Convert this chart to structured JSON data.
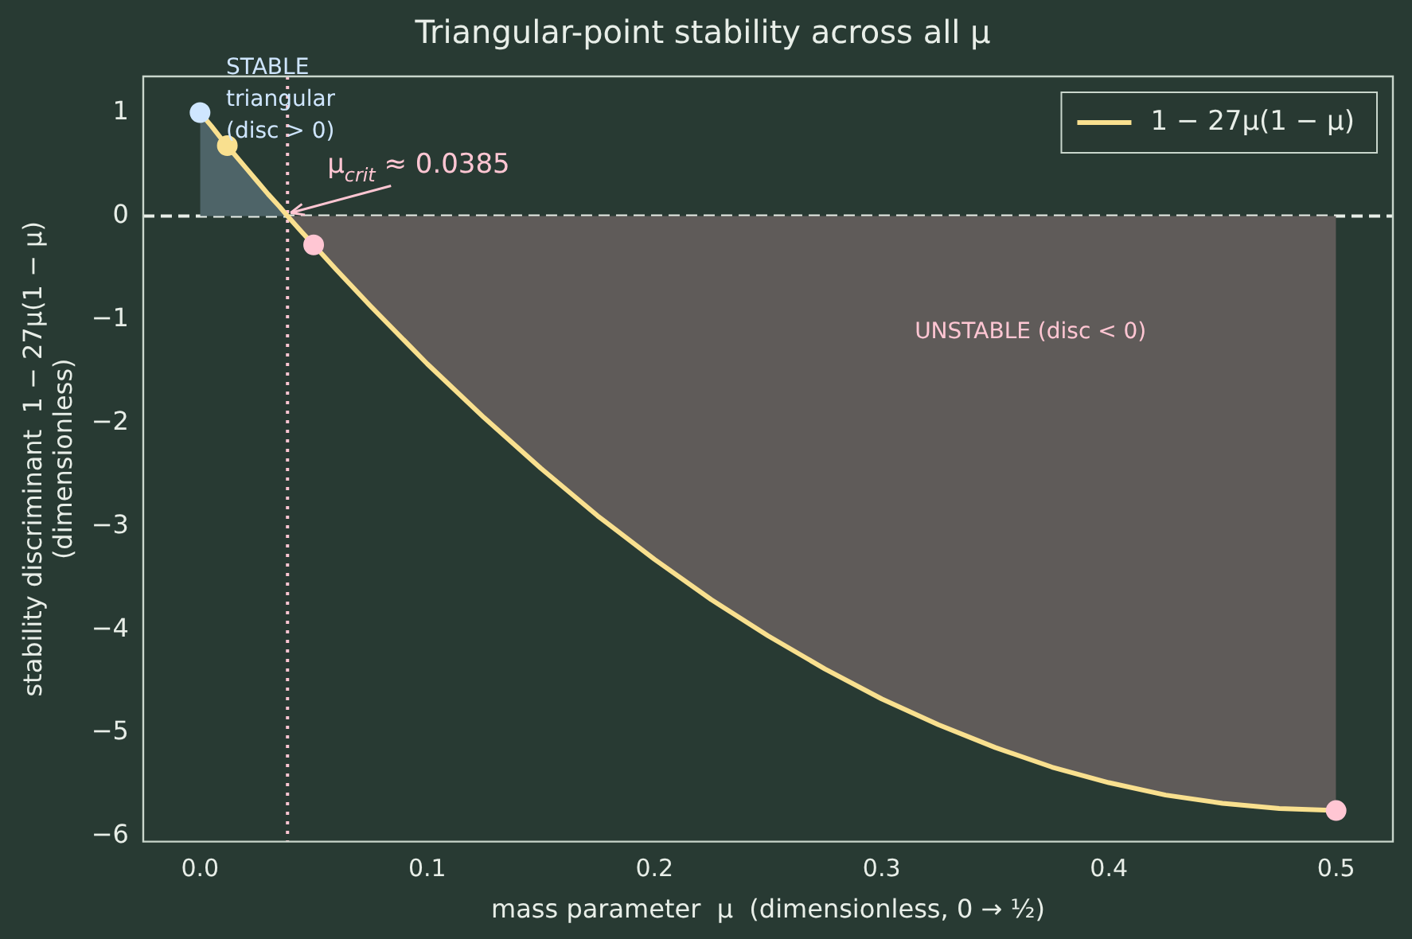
{
  "chart_data": {
    "type": "line",
    "title": "Triangular-point stability across all μ",
    "xlabel": "mass parameter  μ  (dimensionless, 0 → ½)",
    "ylabel": "stability discriminant  1 − 27μ(1 − μ)\n(dimensionless)",
    "series": [
      {
        "type": "area",
        "color": "#4e6468",
        "x": [
          0,
          0.005,
          0.01,
          0.015,
          0.02,
          0.025,
          0.03,
          0.035,
          0.0385
        ],
        "values": [
          1,
          0.87,
          0.73,
          0.6,
          0.47,
          0.34,
          0.21,
          0.09,
          0
        ]
      },
      {
        "type": "area",
        "color": "#5f5b59",
        "x": [
          0.0385,
          0.045,
          0.05,
          0.06,
          0.075,
          0.1,
          0.125,
          0.15,
          0.175,
          0.2,
          0.225,
          0.25,
          0.275,
          0.3,
          0.325,
          0.35,
          0.375,
          0.4,
          0.425,
          0.45,
          0.475,
          0.5
        ],
        "values": [
          0,
          -0.16,
          -0.28,
          -0.52,
          -0.87,
          -1.43,
          -1.95,
          -2.44,
          -2.9,
          -3.32,
          -3.71,
          -4.06,
          -4.38,
          -4.67,
          -4.92,
          -5.14,
          -5.33,
          -5.48,
          -5.6,
          -5.68,
          -5.73,
          -5.75
        ]
      },
      {
        "name": "1 − 27μ(1 − μ)",
        "color": "#f9e08f",
        "marker": "none",
        "x": [
          0,
          0.005,
          0.01,
          0.015,
          0.02,
          0.025,
          0.03,
          0.035,
          0.0385,
          0.045,
          0.05,
          0.06,
          0.075,
          0.1,
          0.125,
          0.15,
          0.175,
          0.2,
          0.225,
          0.25,
          0.275,
          0.3,
          0.325,
          0.35,
          0.375,
          0.4,
          0.425,
          0.45,
          0.475,
          0.5
        ],
        "values": [
          1,
          0.87,
          0.73,
          0.6,
          0.47,
          0.34,
          0.21,
          0.09,
          0,
          -0.16,
          -0.28,
          -0.52,
          -0.87,
          -1.43,
          -1.95,
          -2.44,
          -2.9,
          -3.32,
          -3.71,
          -4.06,
          -4.38,
          -4.67,
          -4.92,
          -5.14,
          -5.33,
          -5.48,
          -5.6,
          -5.68,
          -5.73,
          -5.75
        ]
      },
      {
        "type": "scatter",
        "color": "#cfe6ff",
        "marker": "circle",
        "x": [
          0
        ],
        "values": [
          1
        ]
      },
      {
        "type": "scatter",
        "color": "#f9e08f",
        "marker": "circle",
        "x": [
          0.012
        ],
        "values": [
          0.68
        ]
      },
      {
        "type": "scatter",
        "color": "#ffc6d3",
        "marker": "circle",
        "x": [
          0.05,
          0.5
        ],
        "values": [
          -0.28,
          -5.75
        ]
      }
    ],
    "xlim": [
      -0.025,
      0.525
    ],
    "xticks": [
      {
        "value": 0,
        "label": "0.0"
      },
      {
        "value": 0.1,
        "label": "0.1"
      },
      {
        "value": 0.2,
        "label": "0.2"
      },
      {
        "value": 0.3,
        "label": "0.3"
      },
      {
        "value": 0.4,
        "label": "0.4"
      },
      {
        "value": 0.5,
        "label": "0.5"
      }
    ],
    "ylim": [
      -6.05,
      1.35
    ],
    "yticks": [
      {
        "value": -6,
        "label": "−6"
      },
      {
        "value": -5,
        "label": "−5"
      },
      {
        "value": -4,
        "label": "−4"
      },
      {
        "value": -3,
        "label": "−3"
      },
      {
        "value": -2,
        "label": "−2"
      },
      {
        "value": -1,
        "label": "−1"
      },
      0,
      1
    ],
    "ref_lines": [
      {
        "axis": "y",
        "value": 0,
        "color": "#e8eee8",
        "line_style": "dashed"
      },
      {
        "axis": "x",
        "value": 0.0385,
        "color": "#ffc6d3",
        "line_style": "dotted"
      }
    ],
    "annotations": [
      {
        "text": "μ$_{crit}$ ≈ 0.0385",
        "x": 0.0385,
        "y": 0
      },
      "STABLE\ntriangular\n(disc > 0)",
      "UNSTABLE (disc < 0)"
    ],
    "grid": false,
    "legend": "top right"
  }
}
